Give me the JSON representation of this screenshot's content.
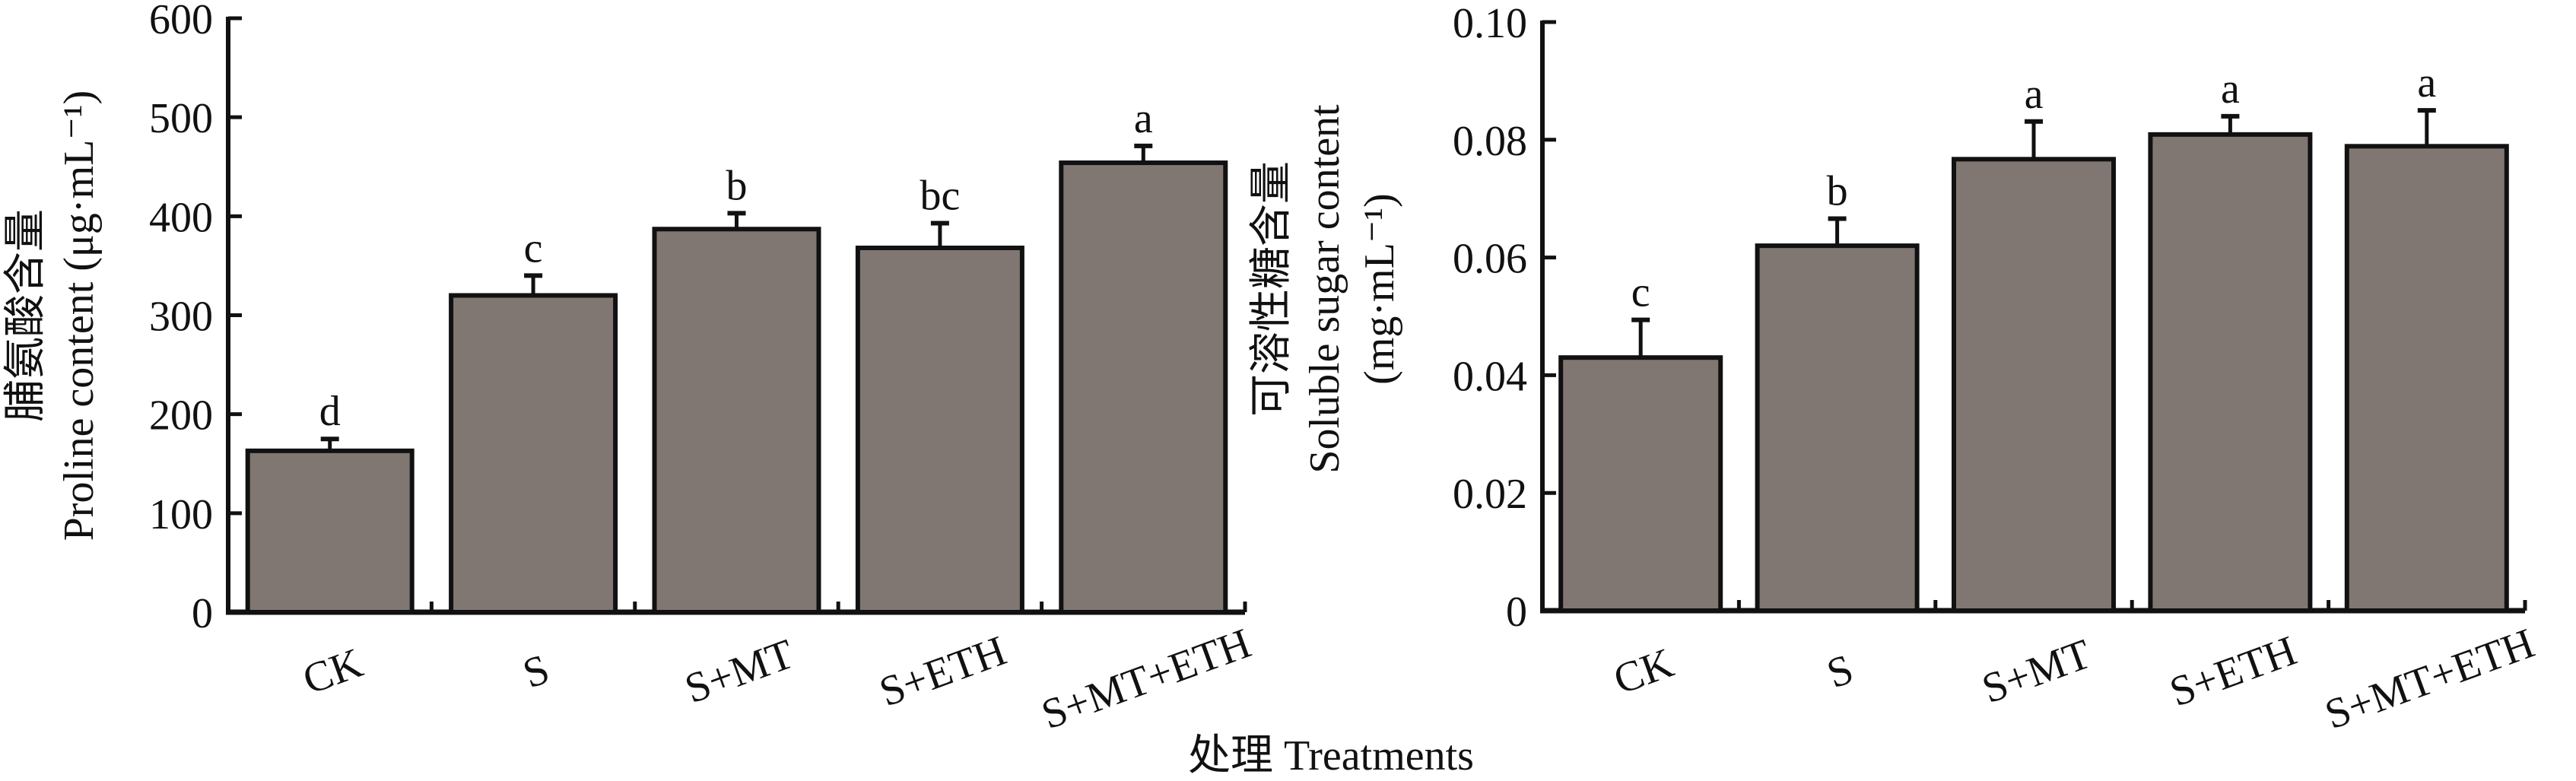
{
  "figure": {
    "xlabel": "处理 Treatments",
    "bar_color": "#807773",
    "edge_color": "#111111"
  },
  "chart_data": [
    {
      "type": "bar",
      "title": "",
      "categories": [
        "CK",
        "S",
        "S+MT",
        "S+ETH",
        "S+MT+ETH"
      ],
      "values": [
        163,
        320,
        387,
        368,
        454
      ],
      "errors": [
        12,
        20,
        16,
        25,
        17
      ],
      "significance": [
        "d",
        "c",
        "b",
        "bc",
        "a"
      ],
      "ylabel_cn": "脯氨酸含量",
      "ylabel_en": "Proline content (μg·mL⁻¹)",
      "ylabel_unit": "",
      "ylim": [
        0,
        600
      ],
      "yticks": [
        0,
        100,
        200,
        300,
        400,
        500,
        600
      ],
      "ytick_labels": [
        "0",
        "100",
        "200",
        "300",
        "400",
        "500",
        "600"
      ],
      "grid": false,
      "legend": "none"
    },
    {
      "type": "bar",
      "title": "",
      "categories": [
        "CK",
        "S",
        "S+MT",
        "S+ETH",
        "S+MT+ETH"
      ],
      "values": [
        0.043,
        0.062,
        0.0767,
        0.0809,
        0.0789
      ],
      "errors": [
        0.0064,
        0.0046,
        0.0064,
        0.0031,
        0.0061
      ],
      "significance": [
        "c",
        "b",
        "a",
        "a",
        "a"
      ],
      "ylabel_cn": "可溶性糖含量",
      "ylabel_en": "Soluble sugar content",
      "ylabel_unit": "(mg·mL⁻¹)",
      "ylim": [
        0,
        0.1
      ],
      "yticks": [
        0,
        0.02,
        0.04,
        0.06,
        0.08,
        0.1
      ],
      "ytick_labels": [
        "0",
        "0.02",
        "0.04",
        "0.06",
        "0.08",
        "0.10"
      ],
      "grid": false,
      "legend": "none"
    }
  ]
}
